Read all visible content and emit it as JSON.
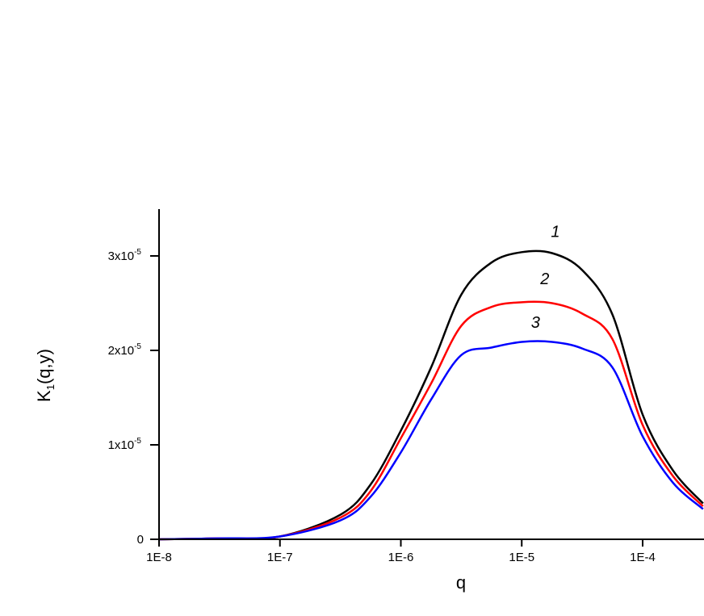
{
  "chart_data": {
    "type": "line",
    "xlabel": "q",
    "ylabel_main": "K",
    "ylabel_sub": "1",
    "ylabel_rest": "(q,y)",
    "xscale": "log",
    "xlim": [
      1e-08,
      0.00032
    ],
    "ylim": [
      0,
      3.5e-05
    ],
    "grid": false,
    "x_ticks": [
      {
        "value": 1e-08,
        "label": "1E-8"
      },
      {
        "value": 1e-07,
        "label": "1E-7"
      },
      {
        "value": 1e-06,
        "label": "1E-6"
      },
      {
        "value": 1e-05,
        "label": "1E-5"
      },
      {
        "value": 0.0001,
        "label": "1E-4"
      }
    ],
    "y_ticks": [
      {
        "value": 0,
        "mant": "0",
        "exp": ""
      },
      {
        "value": 1e-05,
        "mant": "1x10",
        "exp": "-5"
      },
      {
        "value": 2e-05,
        "mant": "2x10",
        "exp": "-5"
      },
      {
        "value": 3e-05,
        "mant": "3x10",
        "exp": "-5"
      }
    ],
    "x": [
      1e-08,
      3.16e-08,
      1e-07,
      3.16e-07,
      5.62e-07,
      1e-06,
      1.78e-06,
      3.16e-06,
      5.62e-06,
      1e-05,
      1.78e-05,
      3.16e-05,
      5.62e-05,
      0.0001,
      0.000178,
      0.000316
    ],
    "series": [
      {
        "name": "1",
        "color": "#000000",
        "values": [
          0,
          1e-07,
          3e-07,
          2.6e-06,
          5.8e-06,
          1.15e-05,
          1.82e-05,
          2.59e-05,
          2.93e-05,
          3.04e-05,
          3.03e-05,
          2.85e-05,
          2.38e-05,
          1.32e-05,
          7.3e-06,
          3.8e-06
        ]
      },
      {
        "name": "2",
        "color": "#ff0000",
        "values": [
          0,
          1e-07,
          3e-07,
          2.3e-06,
          5.1e-06,
          1.07e-05,
          1.65e-05,
          2.26e-05,
          2.46e-05,
          2.51e-05,
          2.5e-05,
          2.39e-05,
          2.12e-05,
          1.21e-05,
          6.7e-06,
          3.5e-06
        ]
      },
      {
        "name": "3",
        "color": "#0000ff",
        "values": [
          0,
          1e-07,
          3e-07,
          2e-06,
          4.5e-06,
          9.2e-06,
          1.48e-05,
          1.95e-05,
          2.03e-05,
          2.09e-05,
          2.09e-05,
          2.02e-05,
          1.82e-05,
          1.09e-05,
          6e-06,
          3.2e-06
        ]
      }
    ],
    "annotations": [
      {
        "text": "1",
        "x": 1.9e-05,
        "y": 3.2e-05
      },
      {
        "text": "2",
        "x": 1.55e-05,
        "y": 2.7e-05
      },
      {
        "text": "3",
        "x": 1.3e-05,
        "y": 2.24e-05
      }
    ]
  }
}
